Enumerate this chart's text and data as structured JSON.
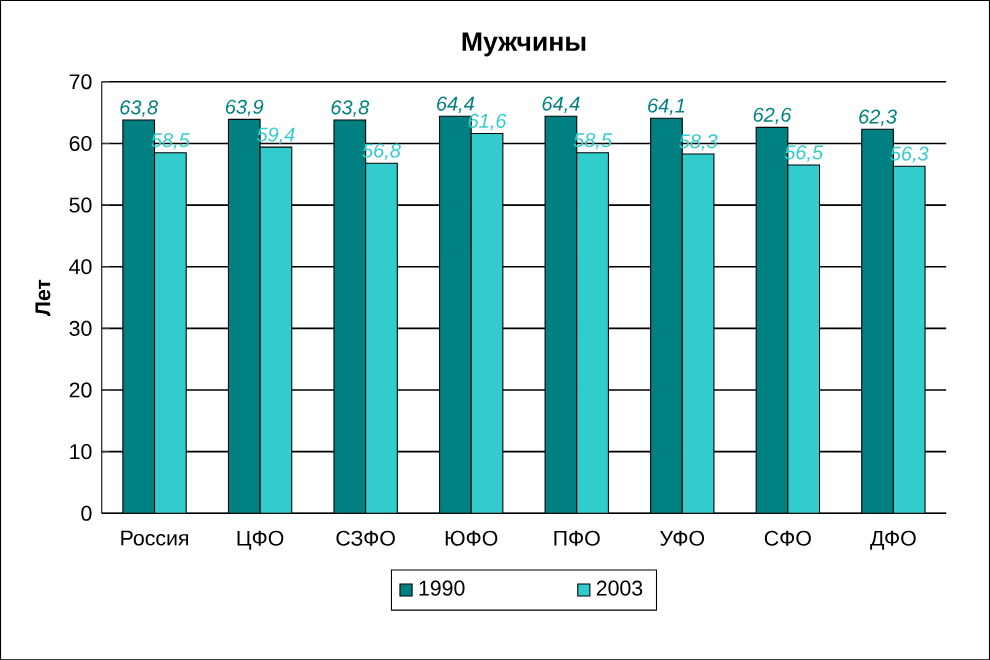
{
  "chart_data": {
    "type": "bar",
    "title": "Мужчины",
    "ylabel": "Лет",
    "categories": [
      "Россия",
      "ЦФО",
      "СЗФО",
      "ЮФО",
      "ПФО",
      "УФО",
      "СФО",
      "ДФО"
    ],
    "series": [
      {
        "name": "1990",
        "color": "#008080",
        "values": [
          63.8,
          63.9,
          63.8,
          64.4,
          64.4,
          64.1,
          62.6,
          62.3
        ],
        "value_labels": [
          "63,8",
          "63,9",
          "63,8",
          "64,4",
          "64,4",
          "64,1",
          "62,6",
          "62,3"
        ]
      },
      {
        "name": "2003",
        "color": "#33cccc",
        "values": [
          58.5,
          59.4,
          56.8,
          61.6,
          58.5,
          58.3,
          56.5,
          56.3
        ],
        "value_labels": [
          "58,5",
          "59,4",
          "56,8",
          "61,6",
          "58,5",
          "58,3",
          "56,5",
          "56,3"
        ]
      }
    ],
    "ylim": [
      0,
      70
    ],
    "yticks": [
      0,
      10,
      20,
      30,
      40,
      50,
      60,
      70
    ],
    "grid": "y",
    "legend": "bottom"
  }
}
